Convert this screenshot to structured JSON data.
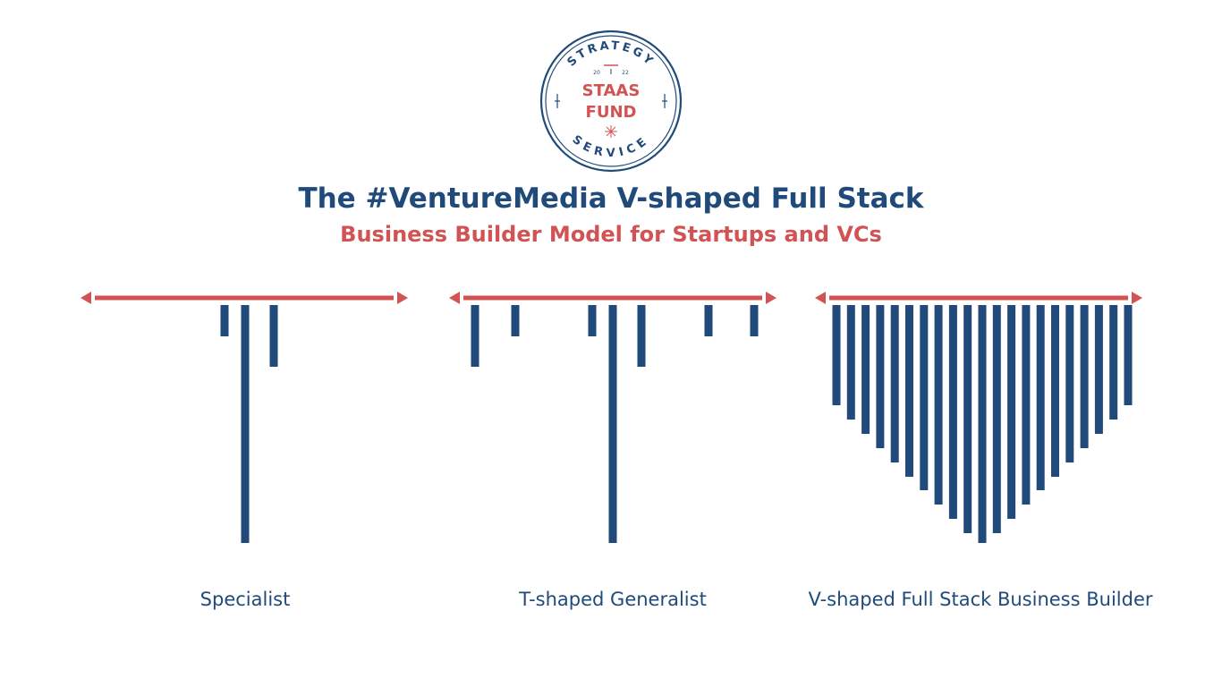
{
  "logo": {
    "ring_top": "STRATEGY",
    "ring_bottom": "SERVICE",
    "year_left": "20",
    "year_right": "22",
    "name_line1": "STAAS",
    "name_line2": "FUND"
  },
  "title": "The #VentureMedia V-shaped Full Stack",
  "subtitle": "Business Builder Model for Startups and VCs",
  "colors": {
    "navy": "#1f4a7a",
    "red": "#d15353"
  },
  "models": [
    {
      "caption": "Specialist",
      "skill_depths": [
        0.13,
        1.0,
        0.26
      ]
    },
    {
      "caption": "T-shaped Generalist",
      "skill_depths": [
        0.26,
        0.13,
        0.13,
        1.0,
        0.26,
        0.13,
        0.13
      ]
    },
    {
      "caption": "V-shaped Full Stack Business Builder",
      "skill_depths": [
        0.42,
        0.48,
        0.54,
        0.6,
        0.66,
        0.72,
        0.78,
        0.84,
        0.9,
        0.96,
        1.0,
        0.96,
        0.9,
        0.84,
        0.78,
        0.72,
        0.66,
        0.6,
        0.54,
        0.48,
        0.42
      ]
    }
  ]
}
